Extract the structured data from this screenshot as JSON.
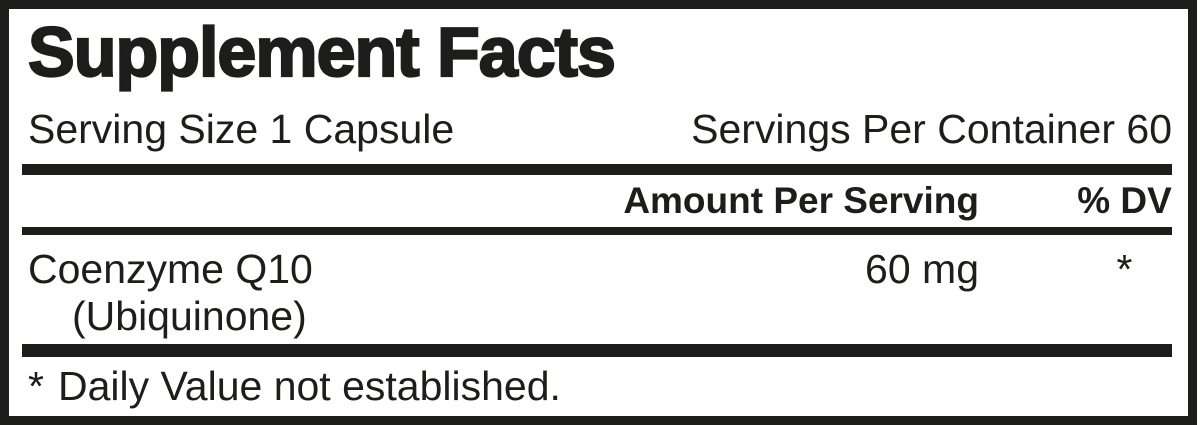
{
  "panel": {
    "title": "Supplement Facts",
    "serving_size": "Serving Size 1 Capsule",
    "servings_per_container": "Servings Per Container 60",
    "header": {
      "amount_per_serving": "Amount Per Serving",
      "percent_dv": "% DV"
    },
    "rows": [
      {
        "name": "Coenzyme Q10",
        "name_sub": "(Ubiquinone)",
        "amount": "60 mg",
        "percent_dv": "*"
      }
    ],
    "footnote": {
      "marker": "*",
      "text": "Daily Value not established."
    }
  },
  "colors": {
    "ink": "#1d1d1b",
    "background": "#ffffff"
  }
}
